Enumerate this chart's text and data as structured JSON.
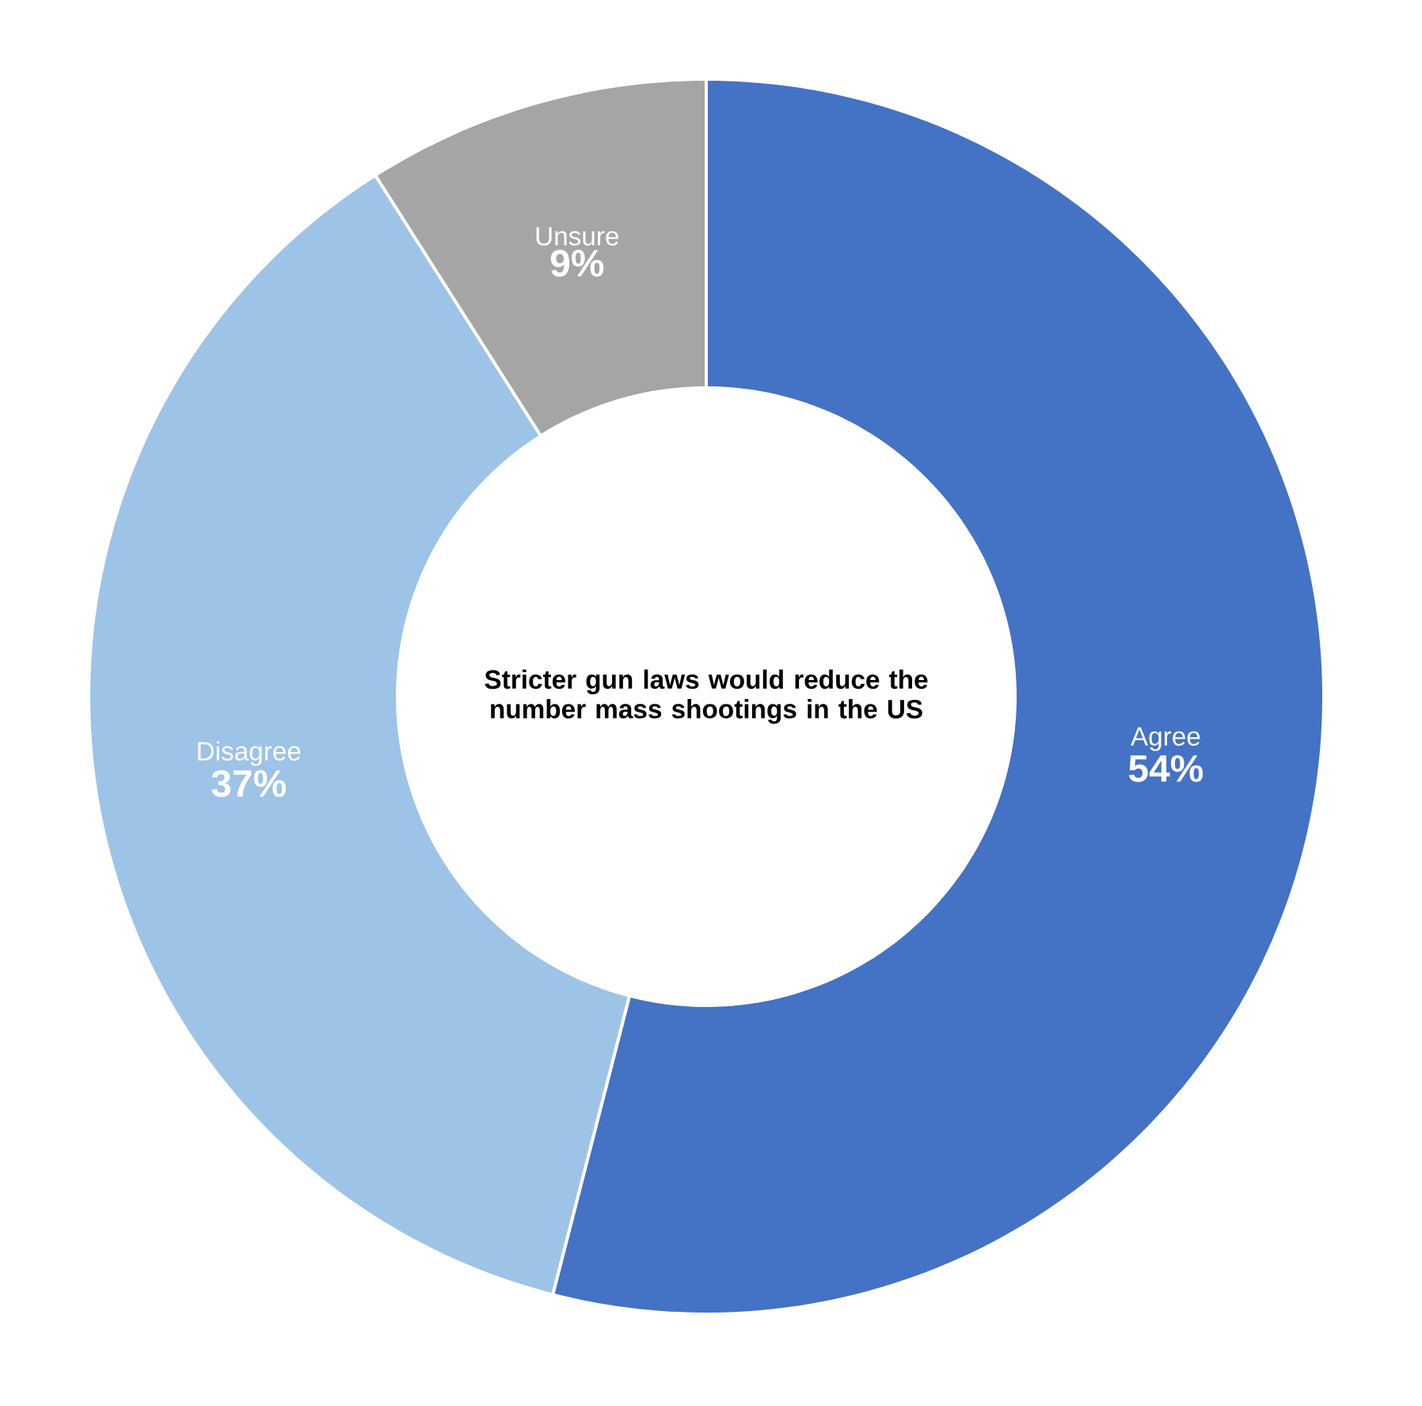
{
  "chart_data": {
    "type": "donut",
    "title": "Stricter gun laws would reduce the number mass shootings in the US",
    "categories": [
      "Agree",
      "Disagree",
      "Unsure"
    ],
    "values": [
      54,
      37,
      9
    ],
    "value_labels": [
      "54%",
      "37%",
      "9%"
    ],
    "colors": [
      "#4472c4",
      "#9dc3e6",
      "#a5a5a5"
    ]
  }
}
